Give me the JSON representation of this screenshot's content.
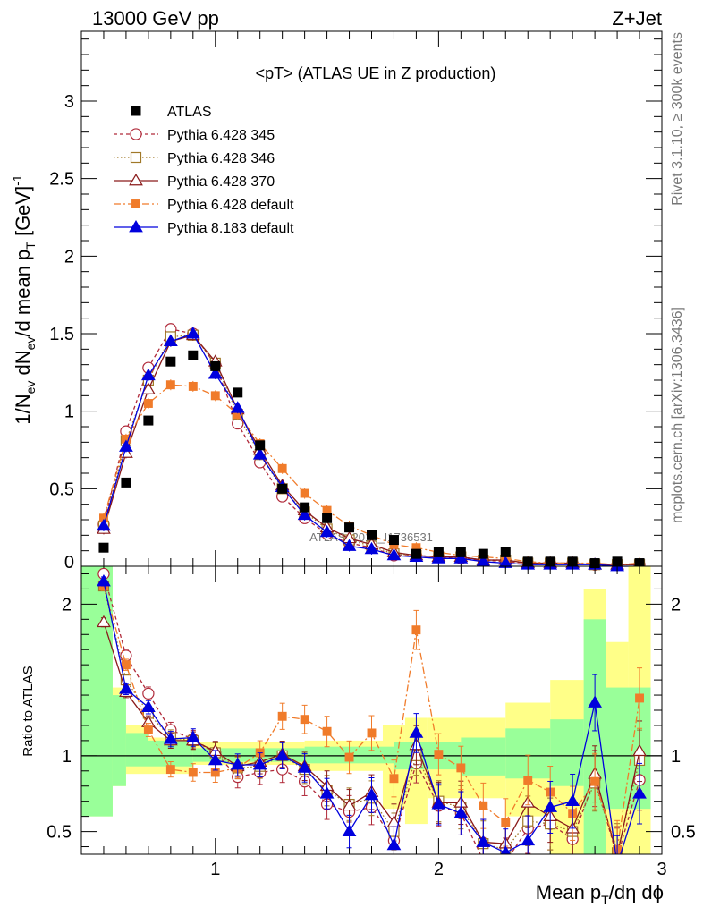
{
  "header": {
    "left": "13000 GeV pp",
    "right": "Z+Jet"
  },
  "side": {
    "rivet": "Rivet 3.1.10, ≥ 300k events",
    "mcplots": "mcplots.cern.ch [arXiv:1306.3436]"
  },
  "chart_data": {
    "type": "line",
    "title": "<pT> (ATLAS UE in Z production)",
    "watermark": "ATLAS_2019_I1736531",
    "xlabel": "Mean pT/dη dφ",
    "ylabel_main": "1/Nev dNev/d mean pT [GeV]^-1",
    "ylabel_ratio": "Ratio to ATLAS",
    "xlim": [
      0.4,
      3.0
    ],
    "ylim_main": [
      0,
      3.45
    ],
    "ylim_ratio": [
      0.35,
      2.25
    ],
    "x_ticks": [
      "1",
      "2",
      "3"
    ],
    "y_ticks_main": [
      "0",
      "0.5",
      "1",
      "1.5",
      "2",
      "2.5",
      "3"
    ],
    "y_ticks_ratio": [
      "0.5",
      "1",
      "2"
    ],
    "x": [
      0.5,
      0.6,
      0.7,
      0.8,
      0.9,
      1.0,
      1.1,
      1.2,
      1.3,
      1.4,
      1.5,
      1.6,
      1.7,
      1.8,
      1.9,
      2.0,
      2.1,
      2.2,
      2.3,
      2.4,
      2.5,
      2.6,
      2.7,
      2.8,
      2.9
    ],
    "data": {
      "name": "ATLAS",
      "values": [
        0.12,
        0.54,
        0.94,
        1.32,
        1.36,
        1.29,
        1.12,
        0.78,
        0.5,
        0.38,
        0.31,
        0.25,
        0.2,
        0.17,
        0.08,
        0.09,
        0.09,
        0.08,
        0.09,
        0.03,
        0.03,
        0.03,
        0.02,
        0.03,
        0.02
      ]
    },
    "band_stat": [
      [
        0.4,
        0.54,
        0.6,
        2.3
      ],
      [
        0.54,
        0.6,
        0.8,
        1.4
      ],
      [
        0.6,
        0.7,
        0.93,
        1.15
      ],
      [
        0.7,
        0.9,
        0.93,
        1.1
      ],
      [
        0.9,
        1.4,
        0.96,
        1.05
      ],
      [
        1.4,
        1.8,
        0.95,
        1.06
      ],
      [
        1.8,
        2.1,
        0.91,
        1.09
      ],
      [
        2.1,
        2.3,
        0.87,
        1.12
      ],
      [
        2.3,
        2.5,
        0.85,
        1.18
      ],
      [
        2.5,
        2.65,
        0.8,
        1.24
      ],
      [
        2.65,
        2.75,
        0.35,
        1.9
      ],
      [
        2.75,
        2.95,
        0.65,
        1.45
      ]
    ],
    "band_total": [
      [
        0.4,
        0.54,
        0.6,
        2.3
      ],
      [
        0.54,
        0.6,
        0.8,
        1.45
      ],
      [
        0.6,
        0.7,
        0.88,
        1.2
      ],
      [
        0.7,
        0.9,
        0.88,
        1.12
      ],
      [
        0.9,
        1.4,
        0.94,
        1.09
      ],
      [
        1.4,
        1.75,
        0.9,
        1.1
      ],
      [
        1.75,
        1.85,
        0.65,
        1.2
      ],
      [
        1.85,
        1.95,
        0.55,
        1.25
      ],
      [
        1.95,
        2.3,
        0.72,
        1.25
      ],
      [
        2.3,
        2.5,
        0.6,
        1.35
      ],
      [
        2.5,
        2.65,
        0.35,
        1.5
      ],
      [
        2.65,
        2.75,
        0.35,
        2.1
      ],
      [
        2.75,
        2.85,
        0.35,
        1.75
      ],
      [
        2.85,
        2.95,
        0.35,
        2.3
      ]
    ],
    "series": [
      {
        "name": "Pythia 6.428 345",
        "color": "#b02a3a",
        "dash": "4,3",
        "marker": "circle-open",
        "values": [
          0.27,
          0.87,
          1.28,
          1.53,
          1.5,
          1.3,
          0.92,
          0.67,
          0.45,
          0.31,
          0.21,
          0.15,
          0.12,
          0.07,
          0.07,
          0.06,
          0.05,
          0.04,
          0.03,
          0.02,
          0.02,
          0.02,
          0.01,
          0.01,
          0.01
        ],
        "ratio": [
          2.2,
          1.66,
          1.41,
          1.17,
          1.11,
          1.02,
          0.86,
          0.89,
          0.91,
          0.83,
          0.68,
          0.63,
          0.66,
          0.44,
          0.95,
          0.67,
          0.62,
          0.31,
          0.3,
          0.52,
          0.55,
          0.45,
          0.85,
          0.33,
          0.84
        ]
      },
      {
        "name": "Pythia 6.428 346",
        "color": "#a07828",
        "dash": "1.5,2.5",
        "marker": "square-open",
        "values": [
          0.26,
          0.81,
          1.2,
          1.48,
          1.49,
          1.31,
          0.98,
          0.72,
          0.5,
          0.35,
          0.24,
          0.17,
          0.13,
          0.08,
          0.07,
          0.06,
          0.06,
          0.04,
          0.04,
          0.02,
          0.02,
          0.02,
          0.01,
          0.01,
          0.01
        ],
        "ratio": [
          2.12,
          1.5,
          1.28,
          1.12,
          1.1,
          1.02,
          0.92,
          0.93,
          1.0,
          0.91,
          0.77,
          0.68,
          0.72,
          0.5,
          1.0,
          0.7,
          0.66,
          0.42,
          0.38,
          0.57,
          0.55,
          0.5,
          0.82,
          0.36,
          0.97
        ]
      },
      {
        "name": "Pythia 6.428 370",
        "color": "#8a1a1a",
        "dash": "",
        "marker": "triangle-open",
        "values": [
          0.24,
          0.73,
          1.14,
          1.45,
          1.49,
          1.32,
          1.01,
          0.75,
          0.52,
          0.36,
          0.25,
          0.18,
          0.14,
          0.09,
          0.07,
          0.06,
          0.06,
          0.04,
          0.04,
          0.02,
          0.02,
          0.02,
          0.01,
          0.01,
          0.01
        ],
        "ratio": [
          1.88,
          1.42,
          1.22,
          1.1,
          1.1,
          1.03,
          0.93,
          0.96,
          1.01,
          0.93,
          0.8,
          0.67,
          0.76,
          0.56,
          1.07,
          0.69,
          0.69,
          0.43,
          0.42,
          0.69,
          0.6,
          0.52,
          0.88,
          0.34,
          1.03
        ]
      },
      {
        "name": "Pythia 6.428 default",
        "color": "#f07b2a",
        "dash": "8,3,2,3",
        "marker": "square-filled",
        "values": [
          0.31,
          0.82,
          1.05,
          1.17,
          1.16,
          1.1,
          0.98,
          0.79,
          0.63,
          0.47,
          0.36,
          0.26,
          0.2,
          0.14,
          0.12,
          0.09,
          0.07,
          0.06,
          0.05,
          0.03,
          0.02,
          0.02,
          0.02,
          0.01,
          0.02
        ],
        "ratio": [
          2.12,
          1.6,
          1.17,
          0.91,
          0.89,
          0.89,
          0.92,
          1.02,
          1.26,
          1.24,
          1.16,
          0.99,
          1.15,
          0.85,
          1.83,
          1.01,
          0.92,
          0.67,
          0.56,
          0.84,
          0.76,
          0.62,
          0.83,
          0.38,
          1.38
        ]
      },
      {
        "name": "Pythia 8.183 default",
        "color": "#0000dd",
        "dash": "",
        "marker": "triangle-filled",
        "values": [
          0.26,
          0.77,
          1.23,
          1.45,
          1.5,
          1.24,
          1.02,
          0.72,
          0.51,
          0.33,
          0.22,
          0.13,
          0.11,
          0.07,
          0.06,
          0.05,
          0.05,
          0.03,
          0.02,
          0.01,
          0.01,
          0.01,
          0.01,
          0.0,
          0.0
        ],
        "ratio": [
          2.15,
          1.44,
          1.32,
          1.11,
          1.12,
          0.97,
          0.94,
          0.94,
          1.0,
          0.92,
          0.75,
          0.5,
          0.74,
          0.41,
          1.15,
          0.68,
          0.62,
          0.43,
          0.36,
          0.44,
          0.66,
          0.7,
          1.35,
          0.28,
          0.75
        ]
      }
    ]
  }
}
